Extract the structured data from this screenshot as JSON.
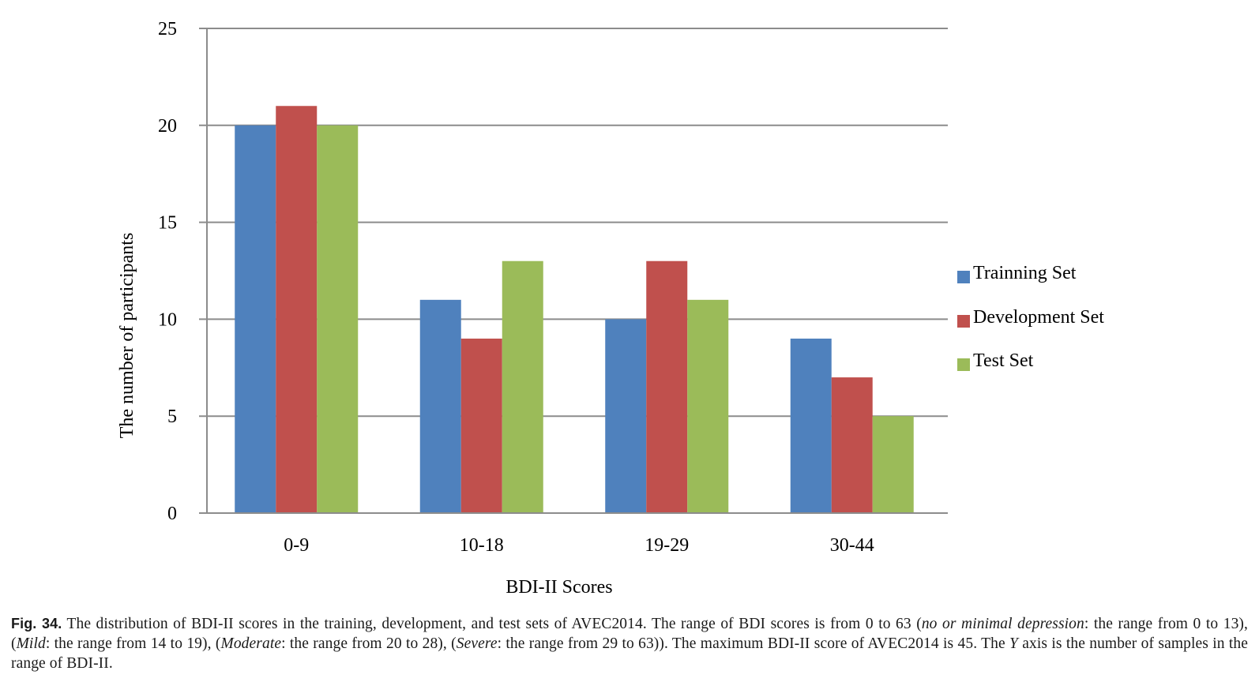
{
  "chart_data": {
    "type": "bar",
    "title": "",
    "xlabel": "BDI-II Scores",
    "ylabel": "The number of participants",
    "categories": [
      "0-9",
      "10-18",
      "19-29",
      "30-44"
    ],
    "series": [
      {
        "name": "Trainning Set",
        "values": [
          20,
          11,
          10,
          9
        ],
        "color": "#4F81BD"
      },
      {
        "name": "Development Set",
        "values": [
          21,
          9,
          13,
          7
        ],
        "color": "#C0504D"
      },
      {
        "name": "Test Set",
        "values": [
          20,
          13,
          11,
          5
        ],
        "color": "#9BBB59"
      }
    ],
    "ylim": [
      0,
      25
    ],
    "yticks": [
      0,
      5,
      10,
      15,
      20,
      25
    ],
    "grid": true,
    "legend_position": "right"
  },
  "caption": {
    "label": "Fig. 34.",
    "parts": [
      {
        "text": "The distribution of BDI-II scores in the training, development, and test sets of AVEC2014. The range of BDI scores is from 0 to 63 (",
        "italic": false
      },
      {
        "text": "no or minimal depression",
        "italic": true
      },
      {
        "text": ": the range from 0 to 13), (",
        "italic": false
      },
      {
        "text": "Mild",
        "italic": true
      },
      {
        "text": ": the range from 14 to 19), (",
        "italic": false
      },
      {
        "text": "Moderate",
        "italic": true
      },
      {
        "text": ": the range from 20 to 28), (",
        "italic": false
      },
      {
        "text": "Severe",
        "italic": true
      },
      {
        "text": ": the range from 29 to 63)). The maximum BDI-II score of AVEC2014 is 45. The ",
        "italic": false
      },
      {
        "text": "Y",
        "italic": true
      },
      {
        "text": " axis is the number of samples in the range of BDI-II.",
        "italic": false
      }
    ]
  }
}
